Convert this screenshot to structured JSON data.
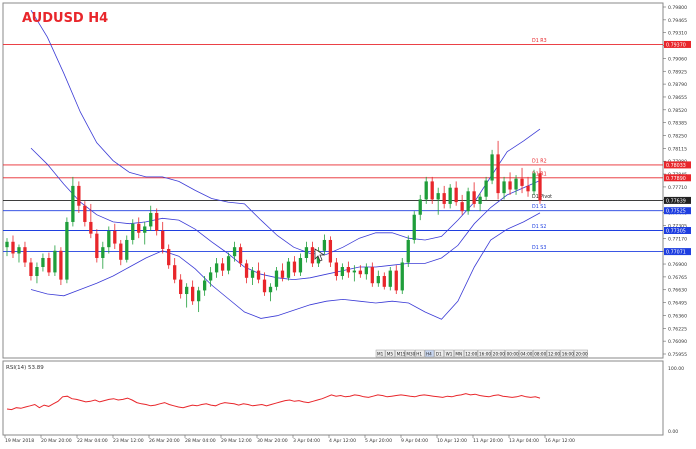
{
  "chart_title": "AUDUSD  H4",
  "colors": {
    "accent_red": "#e8262b",
    "pivot_blue": "#1f3fe0",
    "bollinger": "#3b3bd6",
    "bull": "#1f9e3a",
    "bear": "#e8262b",
    "rsi_line": "#e8262b",
    "grid": "#d0d0d0"
  },
  "rsi_label": "RSI(14) 53.89",
  "rsi_ticks": [
    "100.00",
    "0.00"
  ],
  "chart_data": {
    "type": "candlestick",
    "title": "AUDUSD  H4",
    "ylim": [
      0.7589,
      0.7983
    ],
    "price_ticks": [
      "0.79800",
      "0.79465",
      "0.79310",
      "0.79195",
      "0.79060",
      "0.78925",
      "0.78790",
      "0.78655",
      "0.78520",
      "0.78385",
      "0.78250",
      "0.78115",
      "0.77980",
      "0.77845",
      "0.77710",
      "0.77575",
      "0.77440",
      "0.77305",
      "0.77170",
      "0.77035",
      "0.76900",
      "0.76765",
      "0.76630",
      "0.76495",
      "0.76360",
      "0.76225",
      "0.76090",
      "0.75955"
    ],
    "x_labels": [
      "19 Mar 2018",
      "20 Mar 20:00",
      "22 Mar 04:00",
      "23 Mar 12:00",
      "26 Mar 20:00",
      "28 Mar 04:00",
      "29 Mar 12:00",
      "30 Mar 20:00",
      "3 Apr 04:00",
      "4 Apr 12:00",
      "5 Apr 20:00",
      "9 Apr 04:00",
      "10 Apr 12:00",
      "11 Apr 20:00",
      "13 Apr 04:00",
      "16 Apr 12:00"
    ],
    "pivot_levels": [
      {
        "name": "D1 R3",
        "price": 0.7937,
        "tag": "0.79370",
        "color": "#e8262b"
      },
      {
        "name": "D1 R2",
        "price": 0.78033,
        "tag": "0.78033",
        "color": "#e8262b"
      },
      {
        "name": "D1 R1",
        "price": 0.7789,
        "tag": "0.77890",
        "color": "#e8262b"
      },
      {
        "name": "D1 Pivot",
        "price": 0.77639,
        "tag": "0.77639",
        "color": "#222222"
      },
      {
        "name": "D1 S1",
        "price": 0.77525,
        "tag": "0.77525",
        "color": "#1f3fe0"
      },
      {
        "name": "D1 S2",
        "price": 0.77305,
        "tag": "0.77305",
        "color": "#1f3fe0"
      },
      {
        "name": "D1 S3",
        "price": 0.77071,
        "tag": "0.77071",
        "color": "#1f3fe0"
      }
    ],
    "last_price": "0.77639",
    "candles": [
      [
        0.7712,
        0.7722,
        0.7702,
        0.7718
      ],
      [
        0.7718,
        0.7725,
        0.77,
        0.7705
      ],
      [
        0.7705,
        0.7715,
        0.7695,
        0.7712
      ],
      [
        0.7712,
        0.7718,
        0.769,
        0.7695
      ],
      [
        0.7695,
        0.77,
        0.7675,
        0.768
      ],
      [
        0.768,
        0.7695,
        0.7672,
        0.769
      ],
      [
        0.769,
        0.7705,
        0.7685,
        0.77
      ],
      [
        0.77,
        0.7706,
        0.768,
        0.7684
      ],
      [
        0.7684,
        0.7714,
        0.768,
        0.7708
      ],
      [
        0.7708,
        0.7712,
        0.767,
        0.7676
      ],
      [
        0.7676,
        0.7745,
        0.7672,
        0.774
      ],
      [
        0.774,
        0.779,
        0.7735,
        0.778
      ],
      [
        0.778,
        0.7785,
        0.775,
        0.7758
      ],
      [
        0.7758,
        0.7763,
        0.7735,
        0.774
      ],
      [
        0.774,
        0.776,
        0.7722,
        0.7727
      ],
      [
        0.7727,
        0.7732,
        0.7695,
        0.77
      ],
      [
        0.77,
        0.7718,
        0.7688,
        0.7712
      ],
      [
        0.7712,
        0.7735,
        0.7705,
        0.773
      ],
      [
        0.773,
        0.7738,
        0.771,
        0.7716
      ],
      [
        0.7716,
        0.772,
        0.7692,
        0.7698
      ],
      [
        0.7698,
        0.7725,
        0.7695,
        0.772
      ],
      [
        0.772,
        0.7743,
        0.7715,
        0.7738
      ],
      [
        0.7738,
        0.7745,
        0.7722,
        0.7728
      ],
      [
        0.7728,
        0.774,
        0.7715,
        0.7735
      ],
      [
        0.7735,
        0.7758,
        0.773,
        0.775
      ],
      [
        0.775,
        0.7755,
        0.7725,
        0.773
      ],
      [
        0.773,
        0.774,
        0.7705,
        0.771
      ],
      [
        0.771,
        0.7715,
        0.7688,
        0.7692
      ],
      [
        0.7692,
        0.77,
        0.7672,
        0.7676
      ],
      [
        0.7676,
        0.7682,
        0.7655,
        0.766
      ],
      [
        0.766,
        0.7672,
        0.7645,
        0.7668
      ],
      [
        0.7668,
        0.7675,
        0.7648,
        0.7652
      ],
      [
        0.7652,
        0.7668,
        0.764,
        0.7664
      ],
      [
        0.7664,
        0.768,
        0.7658,
        0.7675
      ],
      [
        0.7675,
        0.769,
        0.7668,
        0.7684
      ],
      [
        0.7684,
        0.77,
        0.7678,
        0.7694
      ],
      [
        0.7694,
        0.77,
        0.768,
        0.7686
      ],
      [
        0.7686,
        0.7706,
        0.7682,
        0.7702
      ],
      [
        0.7702,
        0.7718,
        0.7696,
        0.7712
      ],
      [
        0.7712,
        0.7716,
        0.769,
        0.7694
      ],
      [
        0.7694,
        0.7698,
        0.7672,
        0.7678
      ],
      [
        0.7678,
        0.769,
        0.767,
        0.7686
      ],
      [
        0.7686,
        0.7695,
        0.7672,
        0.7676
      ],
      [
        0.7676,
        0.7684,
        0.7658,
        0.7662
      ],
      [
        0.7662,
        0.7672,
        0.7652,
        0.7668
      ],
      [
        0.7668,
        0.769,
        0.7664,
        0.7686
      ],
      [
        0.7686,
        0.7694,
        0.7674,
        0.7678
      ],
      [
        0.7678,
        0.77,
        0.7675,
        0.7696
      ],
      [
        0.7696,
        0.7702,
        0.768,
        0.7684
      ],
      [
        0.7684,
        0.7705,
        0.768,
        0.77
      ],
      [
        0.77,
        0.7718,
        0.7695,
        0.7712
      ],
      [
        0.7712,
        0.7718,
        0.769,
        0.7694
      ],
      [
        0.7694,
        0.7712,
        0.769,
        0.7708
      ],
      [
        0.7708,
        0.7726,
        0.7704,
        0.772
      ],
      [
        0.772,
        0.7724,
        0.769,
        0.7695
      ],
      [
        0.7695,
        0.77,
        0.7675,
        0.768
      ],
      [
        0.768,
        0.7694,
        0.7676,
        0.769
      ],
      [
        0.769,
        0.7696,
        0.7678,
        0.7684
      ],
      [
        0.7684,
        0.7692,
        0.7674,
        0.7686
      ],
      [
        0.7686,
        0.7692,
        0.7678,
        0.7682
      ],
      [
        0.7682,
        0.7694,
        0.7676,
        0.769
      ],
      [
        0.769,
        0.7695,
        0.7668,
        0.7672
      ],
      [
        0.7672,
        0.7686,
        0.7668,
        0.768
      ],
      [
        0.768,
        0.7684,
        0.7665,
        0.7668
      ],
      [
        0.7668,
        0.769,
        0.7664,
        0.7686
      ],
      [
        0.7686,
        0.7692,
        0.766,
        0.7664
      ],
      [
        0.7664,
        0.77,
        0.766,
        0.7695
      ],
      [
        0.7695,
        0.7725,
        0.769,
        0.772
      ],
      [
        0.772,
        0.7752,
        0.7716,
        0.7748
      ],
      [
        0.7748,
        0.777,
        0.7742,
        0.7765
      ],
      [
        0.7765,
        0.779,
        0.776,
        0.7785
      ],
      [
        0.7785,
        0.779,
        0.776,
        0.7765
      ],
      [
        0.7765,
        0.7778,
        0.7748,
        0.7772
      ],
      [
        0.7772,
        0.778,
        0.7755,
        0.776
      ],
      [
        0.776,
        0.7782,
        0.7755,
        0.7778
      ],
      [
        0.7778,
        0.7785,
        0.7758,
        0.7762
      ],
      [
        0.7762,
        0.777,
        0.7748,
        0.7752
      ],
      [
        0.7752,
        0.7778,
        0.7748,
        0.7774
      ],
      [
        0.7774,
        0.7784,
        0.7756,
        0.776
      ],
      [
        0.776,
        0.7772,
        0.7752,
        0.7768
      ],
      [
        0.7768,
        0.779,
        0.7764,
        0.7786
      ],
      [
        0.7786,
        0.782,
        0.7782,
        0.7815
      ],
      [
        0.7815,
        0.783,
        0.7765,
        0.7772
      ],
      [
        0.7772,
        0.779,
        0.7765,
        0.7785
      ],
      [
        0.7785,
        0.7795,
        0.777,
        0.7776
      ],
      [
        0.7776,
        0.7792,
        0.777,
        0.7788
      ],
      [
        0.7788,
        0.78,
        0.7772,
        0.778
      ],
      [
        0.778,
        0.779,
        0.7768,
        0.7774
      ],
      [
        0.7774,
        0.7798,
        0.777,
        0.7794
      ],
      [
        0.7794,
        0.78,
        0.776,
        0.7764
      ]
    ],
    "bollinger_upper": [
      0.7975,
      0.7945,
      0.7905,
      0.7862,
      0.7828,
      0.7808,
      0.7795,
      0.779,
      0.779,
      0.7785,
      0.7775,
      0.7766,
      0.7762,
      0.776,
      0.7742,
      0.7725,
      0.7712,
      0.7705,
      0.7704,
      0.7712,
      0.7722,
      0.7728,
      0.7728,
      0.7722,
      0.772,
      0.7724,
      0.7742,
      0.7762,
      0.779,
      0.7818,
      0.783,
      0.7843
    ],
    "bollinger_middle": [
      0.7822,
      0.7804,
      0.7782,
      0.7762,
      0.7748,
      0.774,
      0.7738,
      0.774,
      0.7744,
      0.7742,
      0.7732,
      0.7718,
      0.7705,
      0.769,
      0.7682,
      0.7678,
      0.7676,
      0.7678,
      0.7682,
      0.7686,
      0.769,
      0.769,
      0.7692,
      0.7694,
      0.7694,
      0.77,
      0.7714,
      0.7738,
      0.7756,
      0.777,
      0.7778,
      0.7786
    ],
    "bollinger_lower": [
      0.7665,
      0.766,
      0.7658,
      0.7665,
      0.7672,
      0.768,
      0.769,
      0.77,
      0.7708,
      0.7702,
      0.7688,
      0.767,
      0.7655,
      0.764,
      0.7633,
      0.7636,
      0.7642,
      0.7648,
      0.7652,
      0.7654,
      0.7652,
      0.765,
      0.7652,
      0.765,
      0.764,
      0.7632,
      0.7652,
      0.769,
      0.772,
      0.7732,
      0.774,
      0.775
    ],
    "rsi_values": [
      36,
      35,
      38,
      37,
      39,
      41,
      43,
      38,
      42,
      40,
      44,
      48,
      55,
      56,
      52,
      51,
      49,
      47,
      48,
      50,
      47,
      49,
      51,
      52,
      50,
      51,
      53,
      50,
      46,
      44,
      43,
      41,
      42,
      44,
      46,
      43,
      41,
      39,
      38,
      40,
      42,
      41,
      43,
      44,
      42,
      41,
      44,
      46,
      45,
      44,
      42,
      44,
      43,
      41,
      42,
      43,
      41,
      43,
      45,
      47,
      49,
      50,
      48,
      49,
      47,
      46,
      48,
      50,
      52,
      55,
      58,
      56,
      57,
      55,
      56,
      58,
      57,
      55,
      54,
      56,
      58,
      57,
      55,
      56,
      57,
      58,
      57,
      56,
      55,
      57,
      58,
      57,
      56,
      55,
      54,
      56,
      55,
      57,
      58,
      60,
      58,
      59,
      57,
      56,
      55,
      57,
      58,
      56,
      55,
      54,
      55,
      57,
      55,
      54,
      55,
      53
    ],
    "period_buttons": [
      "M1",
      "M5",
      "M15",
      "M30",
      "H1",
      "H4",
      "D1",
      "W1",
      "MN",
      "12:00",
      "16:00",
      "20:00",
      "00:00",
      "04:00",
      "08:00",
      "12:00",
      "16:00",
      "20:00"
    ],
    "legend": "top-left"
  }
}
